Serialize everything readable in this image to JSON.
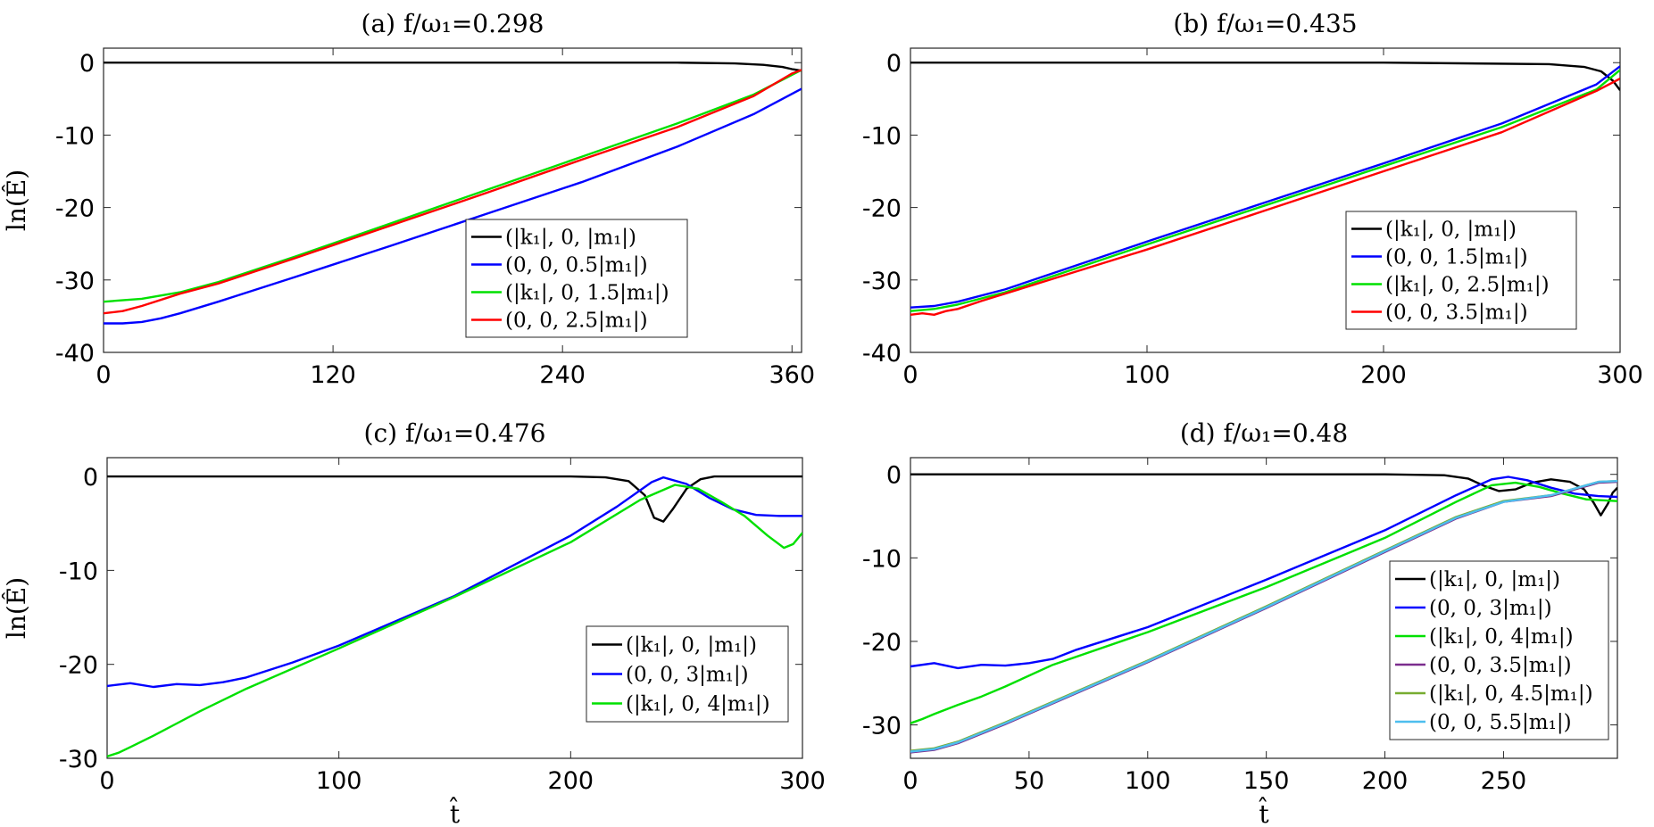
{
  "chart_data": [
    {
      "id": "a",
      "type": "line",
      "title": "(a) f/ω₁=0.298",
      "xlabel": "",
      "ylabel": "ln(Ê)",
      "xlim": [
        0,
        365
      ],
      "ylim": [
        -40,
        2
      ],
      "xticks": [
        0,
        120,
        240,
        360
      ],
      "yticks": [
        0,
        -10,
        -20,
        -30,
        -40
      ],
      "legend_position": "bottom-right",
      "series": [
        {
          "name": "(|k₁|, 0, |m₁|)",
          "color": "#000000",
          "x": [
            0,
            100,
            200,
            300,
            330,
            345,
            355,
            360,
            365
          ],
          "y": [
            0,
            0,
            0,
            0,
            -0.1,
            -0.3,
            -0.6,
            -0.9,
            -1.1
          ]
        },
        {
          "name": "(0, 0, 0.5|m₁|)",
          "color": "#0000ff",
          "x": [
            0,
            10,
            20,
            30,
            40,
            60,
            100,
            150,
            200,
            250,
            300,
            340,
            365
          ],
          "y": [
            -36,
            -36,
            -35.8,
            -35.3,
            -34.6,
            -33.0,
            -29.6,
            -25.3,
            -20.9,
            -16.5,
            -11.6,
            -7.1,
            -3.6
          ]
        },
        {
          "name": "(|k₁|, 0, 1.5|m₁|)",
          "color": "#00e000",
          "x": [
            0,
            20,
            40,
            60,
            100,
            150,
            200,
            250,
            300,
            340,
            365
          ],
          "y": [
            -33,
            -32.6,
            -31.7,
            -30.3,
            -26.8,
            -22.2,
            -17.6,
            -13.0,
            -8.4,
            -4.4,
            -1.0
          ]
        },
        {
          "name": "(0, 0, 2.5|m₁|)",
          "color": "#ff0000",
          "x": [
            0,
            10,
            20,
            40,
            60,
            100,
            150,
            200,
            250,
            300,
            340,
            360,
            365
          ],
          "y": [
            -34.6,
            -34.3,
            -33.6,
            -31.9,
            -30.5,
            -27.0,
            -22.5,
            -18.0,
            -13.4,
            -8.9,
            -4.6,
            -1.5,
            -1.0
          ]
        }
      ]
    },
    {
      "id": "b",
      "type": "line",
      "title": "(b) f/ω₁=0.435",
      "xlabel": "",
      "ylabel": "",
      "xlim": [
        0,
        300
      ],
      "ylim": [
        -40,
        2
      ],
      "xticks": [
        0,
        100,
        200,
        300
      ],
      "yticks": [
        0,
        -10,
        -20,
        -30,
        -40
      ],
      "legend_position": "bottom-right",
      "series": [
        {
          "name": "(|k₁|, 0, |m₁|)",
          "color": "#000000",
          "x": [
            0,
            100,
            200,
            270,
            285,
            292,
            297,
            300
          ],
          "y": [
            0,
            0,
            0,
            -0.2,
            -0.6,
            -1.2,
            -2.5,
            -3.8
          ]
        },
        {
          "name": "(0, 0, 1.5|m₁|)",
          "color": "#0000ff",
          "x": [
            0,
            10,
            20,
            40,
            100,
            150,
            200,
            250,
            290,
            300
          ],
          "y": [
            -33.8,
            -33.6,
            -33.0,
            -31.3,
            -24.7,
            -19.3,
            -13.9,
            -8.4,
            -3.0,
            -0.5
          ]
        },
        {
          "name": "(|k₁|, 0, 2.5|m₁|)",
          "color": "#00e000",
          "x": [
            0,
            10,
            20,
            40,
            100,
            150,
            200,
            250,
            290,
            300
          ],
          "y": [
            -34.3,
            -34.0,
            -33.4,
            -31.7,
            -25.1,
            -19.7,
            -14.3,
            -8.9,
            -3.7,
            -1.0
          ]
        },
        {
          "name": "(0, 0, 3.5|m₁|)",
          "color": "#ff0000",
          "x": [
            0,
            5,
            10,
            15,
            20,
            30,
            100,
            150,
            200,
            250,
            290,
            300
          ],
          "y": [
            -34.8,
            -34.6,
            -34.8,
            -34.3,
            -34.0,
            -32.9,
            -25.8,
            -20.4,
            -15.0,
            -9.6,
            -3.9,
            -2.2
          ]
        }
      ]
    },
    {
      "id": "c",
      "type": "line",
      "title": "(c) f/ω₁=0.476",
      "xlabel": "t̂",
      "ylabel": "ln(Ê)",
      "xlim": [
        0,
        300
      ],
      "ylim": [
        -30,
        2
      ],
      "xticks": [
        0,
        100,
        200,
        300
      ],
      "yticks": [
        0,
        -10,
        -20,
        -30
      ],
      "legend_position": "bottom-right",
      "series": [
        {
          "name": "(|k₁|, 0, |m₁|)",
          "color": "#000000",
          "x": [
            0,
            100,
            200,
            215,
            225,
            232,
            236,
            240,
            244,
            250,
            256,
            262,
            270,
            300
          ],
          "y": [
            0,
            0,
            0,
            -0.1,
            -0.5,
            -2.0,
            -4.4,
            -4.8,
            -3.5,
            -1.3,
            -0.3,
            0,
            0,
            0
          ]
        },
        {
          "name": "(0, 0, 3|m₁|)",
          "color": "#0000ff",
          "x": [
            0,
            10,
            20,
            30,
            40,
            50,
            60,
            70,
            80,
            100,
            150,
            200,
            220,
            235,
            240,
            250,
            260,
            270,
            280,
            290,
            300
          ],
          "y": [
            -22.3,
            -22.0,
            -22.4,
            -22.1,
            -22.2,
            -21.9,
            -21.4,
            -20.6,
            -19.8,
            -18.0,
            -12.7,
            -6.3,
            -3.2,
            -0.6,
            -0.1,
            -0.8,
            -2.3,
            -3.5,
            -4.1,
            -4.2,
            -4.2
          ]
        },
        {
          "name": "(|k₁|, 0, 4|m₁|)",
          "color": "#00e000",
          "x": [
            0,
            5,
            10,
            20,
            30,
            40,
            60,
            100,
            150,
            200,
            230,
            245,
            255,
            265,
            275,
            285,
            292,
            296,
            300
          ],
          "y": [
            -29.8,
            -29.4,
            -28.8,
            -27.6,
            -26.3,
            -25.0,
            -22.6,
            -18.3,
            -12.8,
            -7.0,
            -2.5,
            -0.9,
            -1.3,
            -2.7,
            -4.2,
            -6.3,
            -7.6,
            -7.2,
            -6.0
          ]
        }
      ]
    },
    {
      "id": "d",
      "type": "line",
      "title": "(d) f/ω₁=0.48",
      "xlabel": "t̂",
      "ylabel": "",
      "xlim": [
        0,
        298
      ],
      "ylim": [
        -34,
        2
      ],
      "xticks": [
        0,
        50,
        100,
        150,
        200,
        250
      ],
      "yticks": [
        0,
        -10,
        -20,
        -30
      ],
      "legend_position": "bottom-right",
      "series": [
        {
          "name": "(|k₁|, 0, |m₁|)",
          "color": "#000000",
          "x": [
            0,
            100,
            200,
            225,
            235,
            242,
            248,
            255,
            262,
            270,
            278,
            284,
            288,
            291,
            294,
            296,
            298
          ],
          "y": [
            0,
            0,
            0,
            -0.1,
            -0.5,
            -1.4,
            -2.0,
            -1.8,
            -1.0,
            -0.6,
            -0.9,
            -1.8,
            -3.4,
            -4.9,
            -3.5,
            -2.2,
            -1.6
          ]
        },
        {
          "name": "(0, 0, 3|m₁|)",
          "color": "#0000ff",
          "x": [
            0,
            10,
            20,
            30,
            40,
            50,
            60,
            70,
            100,
            150,
            200,
            230,
            245,
            252,
            260,
            270,
            280,
            290,
            298
          ],
          "y": [
            -23.0,
            -22.6,
            -23.2,
            -22.8,
            -22.9,
            -22.6,
            -22.1,
            -21.0,
            -18.3,
            -12.6,
            -6.7,
            -2.5,
            -0.6,
            -0.3,
            -0.7,
            -1.6,
            -2.3,
            -2.6,
            -2.7
          ]
        },
        {
          "name": "(|k₁|, 0, 4|m₁|)",
          "color": "#00e000",
          "x": [
            0,
            5,
            10,
            20,
            30,
            40,
            60,
            100,
            150,
            200,
            230,
            245,
            255,
            265,
            275,
            285,
            298
          ],
          "y": [
            -29.8,
            -29.3,
            -28.7,
            -27.6,
            -26.6,
            -25.4,
            -22.8,
            -18.9,
            -13.5,
            -7.6,
            -3.3,
            -1.3,
            -1.0,
            -1.5,
            -2.3,
            -3.0,
            -3.2
          ]
        },
        {
          "name": "(0, 0, 3.5|m₁|)",
          "color": "#7b2d8e",
          "x": [
            0,
            10,
            20,
            40,
            100,
            150,
            200,
            230,
            250,
            270,
            280,
            290,
            298
          ],
          "y": [
            -33.3,
            -33.0,
            -32.2,
            -29.9,
            -22.5,
            -16.0,
            -9.3,
            -5.3,
            -3.3,
            -2.6,
            -1.8,
            -1.0,
            -0.9
          ]
        },
        {
          "name": "(|k₁|, 0, 4.5|m₁|)",
          "color": "#77ac30",
          "x": [
            0,
            10,
            20,
            40,
            100,
            150,
            200,
            230,
            250,
            270,
            280,
            290,
            298
          ],
          "y": [
            -33.1,
            -32.8,
            -32.0,
            -29.7,
            -22.3,
            -15.8,
            -9.1,
            -5.1,
            -3.2,
            -2.5,
            -1.7,
            -0.9,
            -0.8
          ]
        },
        {
          "name": "(0, 0, 5.5|m₁|)",
          "color": "#4dbeee",
          "x": [
            0,
            10,
            20,
            40,
            100,
            150,
            200,
            230,
            250,
            270,
            280,
            290,
            298
          ],
          "y": [
            -33.2,
            -32.9,
            -32.1,
            -29.8,
            -22.4,
            -15.9,
            -9.2,
            -5.2,
            -3.3,
            -2.5,
            -1.7,
            -0.9,
            -0.8
          ]
        }
      ]
    }
  ]
}
